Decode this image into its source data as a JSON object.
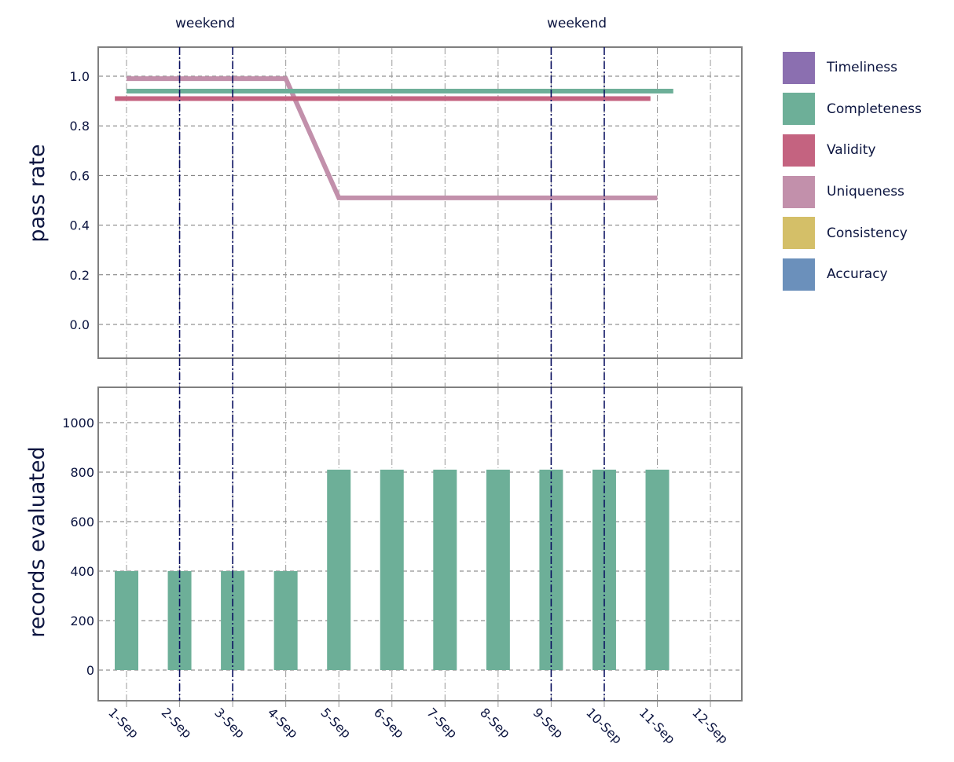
{
  "chart_data": [
    {
      "type": "line",
      "ylabel": "pass rate",
      "xlabel": "",
      "ylim": [
        -0.13,
        1.12
      ],
      "yticks": [
        "0.0",
        "0.2",
        "0.4",
        "0.6",
        "0.8",
        "1.0"
      ],
      "categories": [
        "1-Sep",
        "2-Sep",
        "3-Sep",
        "4-Sep",
        "5-Sep",
        "6-Sep",
        "7-Sep",
        "8-Sep",
        "9-Sep",
        "10-Sep",
        "11-Sep",
        "12-Sep"
      ],
      "grid": true,
      "series": [
        {
          "name": "Uniqueness",
          "color": "#c290ab",
          "values": [
            0.99,
            0.99,
            0.99,
            0.99,
            0.51,
            0.51,
            0.51,
            0.51,
            0.51,
            0.51,
            0.51,
            null
          ]
        },
        {
          "name": "Completeness",
          "color": "#6daf98",
          "values": [
            0.94,
            0.94,
            0.94,
            0.94,
            0.94,
            0.94,
            0.94,
            0.94,
            0.94,
            0.94,
            0.94,
            null
          ]
        },
        {
          "name": "Validity",
          "color": "#c46380",
          "values": [
            0.91,
            0.91,
            0.91,
            0.91,
            0.91,
            0.91,
            0.91,
            0.91,
            0.91,
            0.91,
            0.91,
            null
          ]
        }
      ],
      "annotations": [
        {
          "text": "weekend",
          "between": [
            "2-Sep",
            "3-Sep"
          ]
        },
        {
          "text": "weekend",
          "between": [
            "9-Sep",
            "10-Sep"
          ]
        }
      ]
    },
    {
      "type": "bar",
      "ylabel": "records evaluated",
      "xlabel": "",
      "ylim": [
        -120,
        1130
      ],
      "yticks": [
        "0",
        "200",
        "400",
        "600",
        "800",
        "1000"
      ],
      "categories": [
        "1-Sep",
        "2-Sep",
        "3-Sep",
        "4-Sep",
        "5-Sep",
        "6-Sep",
        "7-Sep",
        "8-Sep",
        "9-Sep",
        "10-Sep",
        "11-Sep",
        "12-Sep"
      ],
      "grid": true,
      "series": [
        {
          "name": "records evaluated",
          "color": "#6daf98",
          "values": [
            400,
            400,
            400,
            400,
            810,
            810,
            810,
            810,
            810,
            810,
            810,
            0
          ]
        }
      ]
    }
  ],
  "top_chart": {
    "ylabel": "pass rate",
    "yticks": [
      "1.0",
      "0.8",
      "0.6",
      "0.4",
      "0.2",
      "0.0"
    ]
  },
  "bottom_chart": {
    "ylabel": "records evaluated",
    "yticks": [
      "1000",
      "800",
      "600",
      "400",
      "200",
      "0"
    ]
  },
  "x_labels": [
    "1-Sep",
    "2-Sep",
    "3-Sep",
    "4-Sep",
    "5-Sep",
    "6-Sep",
    "7-Sep",
    "8-Sep",
    "9-Sep",
    "10-Sep",
    "11-Sep",
    "12-Sep"
  ],
  "annotations": [
    "weekend",
    "weekend"
  ],
  "legend": [
    {
      "label": "Timeliness",
      "color": "#8b6fb0"
    },
    {
      "label": "Completeness",
      "color": "#6daf98"
    },
    {
      "label": "Validity",
      "color": "#c46380"
    },
    {
      "label": "Uniqueness",
      "color": "#c290ab"
    },
    {
      "label": "Consistency",
      "color": "#d4bf68"
    },
    {
      "label": "Accuracy",
      "color": "#6b90bb"
    }
  ]
}
